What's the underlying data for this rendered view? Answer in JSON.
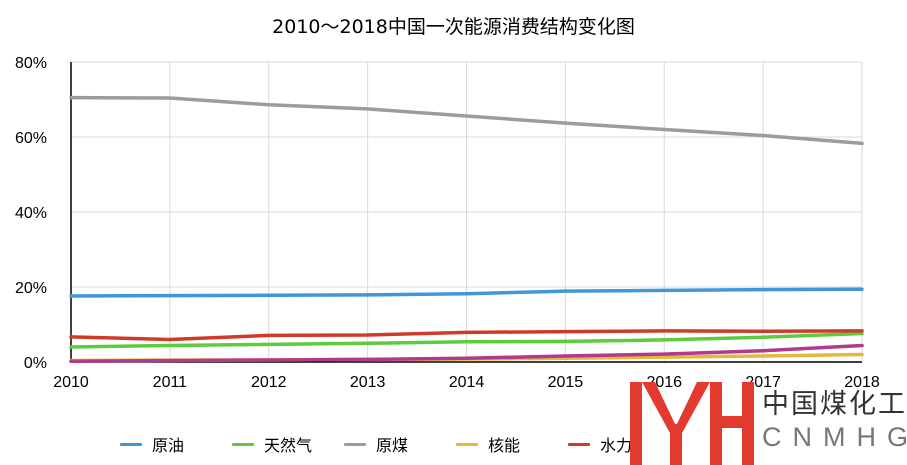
{
  "chart_data": {
    "type": "line",
    "title": "2010～2018中国一次能源消费结构变化图",
    "x": [
      2010,
      2011,
      2012,
      2013,
      2014,
      2015,
      2016,
      2017,
      2018
    ],
    "x_tick_labels": [
      "2010",
      "2011",
      "2012",
      "2013",
      "2014",
      "2015",
      "2016",
      "2017",
      "2018"
    ],
    "y_tick_labels": [
      "0%",
      "20%",
      "40%",
      "60%",
      "80%"
    ],
    "ylim": [
      0,
      80
    ],
    "grid": true,
    "legend_position": "bottom",
    "series": [
      {
        "name": "原油",
        "color": "#3f97d7",
        "values": [
          17.6,
          17.7,
          17.8,
          17.9,
          18.2,
          18.9,
          19.1,
          19.3,
          19.4
        ]
      },
      {
        "name": "天然气",
        "color": "#5ccc3d",
        "values": [
          4.0,
          4.4,
          4.7,
          5.0,
          5.4,
          5.5,
          5.9,
          6.6,
          7.6
        ]
      },
      {
        "name": "原煤",
        "color": "#9c9c9c",
        "values": [
          70.5,
          70.4,
          68.6,
          67.5,
          65.6,
          63.7,
          62.0,
          60.4,
          58.3
        ]
      },
      {
        "name": "核能",
        "color": "#e5b73b",
        "values": [
          0.4,
          0.5,
          0.6,
          0.7,
          0.8,
          1.0,
          1.3,
          1.6,
          2.0
        ]
      },
      {
        "name": "水力",
        "color": "#d03a2a",
        "values": [
          6.7,
          6.0,
          7.1,
          7.2,
          7.9,
          8.1,
          8.3,
          8.2,
          8.3
        ]
      },
      {
        "name": "",
        "color": "#b03a8c",
        "values": [
          0.2,
          0.4,
          0.5,
          0.7,
          1.0,
          1.6,
          2.1,
          3.0,
          4.4
        ]
      }
    ]
  },
  "logo": {
    "chinese": "中国煤化工",
    "english": "CNMHG",
    "color": "#e23a2e"
  }
}
